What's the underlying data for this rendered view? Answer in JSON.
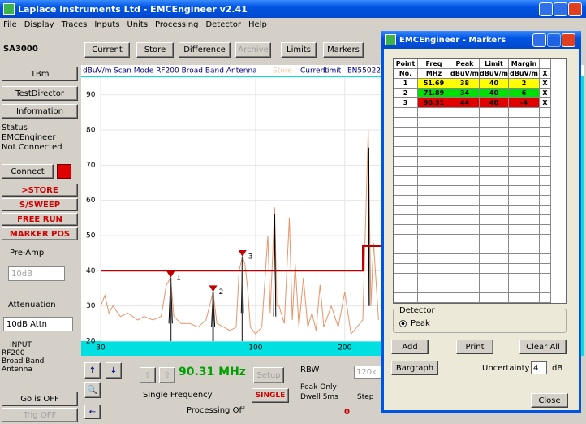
{
  "window": {
    "title": "Laplace Instruments Ltd - EMCEngineer v2.41",
    "menu": [
      "File",
      "Display",
      "Traces",
      "Inputs",
      "Units",
      "Processing",
      "Detector",
      "Help"
    ]
  },
  "toolbar": {
    "device": "SA3000",
    "buttons": [
      "Current",
      "Store",
      "Difference",
      "Archive",
      "Limits",
      "Markers"
    ]
  },
  "left_panel": {
    "buttons": [
      "1Bm",
      "TestDirector",
      "Information"
    ],
    "status": [
      "Status",
      "EMCEngineer",
      "Not Connected"
    ],
    "connect": "Connect",
    "modes": [
      ">STORE",
      "S/SWEEP",
      "FREE RUN",
      "MARKER POS"
    ],
    "preamp_label": "Pre-Amp",
    "preamp": "10dB",
    "atten_label": "Attenuation",
    "atten": "10dB Attn",
    "input": [
      "INPUT",
      "RF200",
      "Broad Band",
      "Antenna"
    ],
    "go": "Go is OFF",
    "trig": "Trig OFF"
  },
  "chart_data": {
    "type": "line",
    "y_label": "dBuV/m",
    "header": "Scan Mode RF200 Broad Band Antenna",
    "standard": "EN55022",
    "xscale": "log",
    "xlim": [
      30,
      1000
    ],
    "ylim": [
      20,
      95
    ],
    "xticks": [
      30,
      100,
      200
    ],
    "yticks": [
      20,
      30,
      40,
      50,
      60,
      70,
      80,
      90
    ],
    "grid": true,
    "series": [
      {
        "name": "Store",
        "color": "#e8956b",
        "x": [
          30,
          31,
          32,
          33,
          35,
          37,
          40,
          42,
          45,
          48,
          50,
          51.7,
          53,
          56,
          60,
          64,
          68,
          71.9,
          74,
          78,
          82,
          86,
          88,
          90.31,
          92,
          94,
          96,
          100,
          105,
          110,
          112,
          116,
          118,
          120,
          125,
          130,
          133,
          136,
          140,
          145,
          150,
          155,
          160,
          165,
          170,
          180,
          190,
          200,
          210,
          220,
          230,
          240,
          245,
          250,
          260
        ],
        "values": [
          30,
          33,
          28,
          30,
          27,
          28,
          26,
          27,
          26,
          27,
          36,
          38,
          27,
          25,
          25,
          24,
          26,
          34,
          25,
          24,
          23,
          24,
          40,
          44,
          42,
          35,
          24,
          22,
          24,
          50,
          28,
          58,
          30,
          30,
          25,
          55,
          26,
          42,
          24,
          38,
          24,
          28,
          23,
          36,
          24,
          30,
          24,
          34,
          22,
          24,
          26,
          80,
          30,
          48,
          26
        ]
      },
      {
        "name": "Current",
        "color": "#000000",
        "x": [
          51,
          51.7,
          52.4,
          60,
          71,
          71.9,
          72.8,
          80,
          89.5,
          90.31,
          91,
          100,
          115,
          116,
          117,
          130,
          240,
          241,
          242
        ],
        "values": [
          25,
          38,
          25,
          null,
          24,
          34,
          24,
          null,
          28,
          44,
          28,
          null,
          27,
          56,
          27,
          null,
          30,
          75,
          30
        ]
      },
      {
        "name": "Limit",
        "color": "#c00000",
        "x": [
          30,
          230,
          230,
          1000
        ],
        "values": [
          40,
          40,
          47,
          47
        ]
      }
    ]
  },
  "bottom_panel": {
    "frequency": "90.31 MHz",
    "setup": "Setup",
    "mode": "Single Frequency",
    "single": "SINGLE",
    "processing": "Processing Off",
    "rbw": "RBW",
    "rbw_value": "120k",
    "peak_only": "Peak Only",
    "dwell": "Dwell 5ms",
    "step": "Step",
    "counter": "0"
  },
  "markers_window": {
    "title": "EMCEngineer - Markers",
    "header": [
      "Point",
      "Freq",
      "Peak",
      "Limit",
      "Margin"
    ],
    "units": [
      "No.",
      "MHz",
      "dBuV/m",
      "dBuV/m",
      "dBuV/m",
      "X"
    ],
    "rows": [
      [
        1,
        51.69,
        38,
        40,
        2,
        "X"
      ],
      [
        2,
        71.89,
        34,
        40,
        6,
        "X"
      ],
      [
        3,
        90.31,
        44,
        40,
        -4,
        "X"
      ]
    ],
    "row_colors": [
      "#ffff00",
      "#00e000",
      "#e00000"
    ],
    "detector_label": "Detector",
    "detector": "Peak",
    "buttons": [
      "Add",
      "Print",
      "Clear All",
      "Bargraph"
    ],
    "uncertainty_label": "Uncertainty",
    "uncertainty": 4,
    "uncertainty_unit": "dB",
    "close": "Close"
  }
}
